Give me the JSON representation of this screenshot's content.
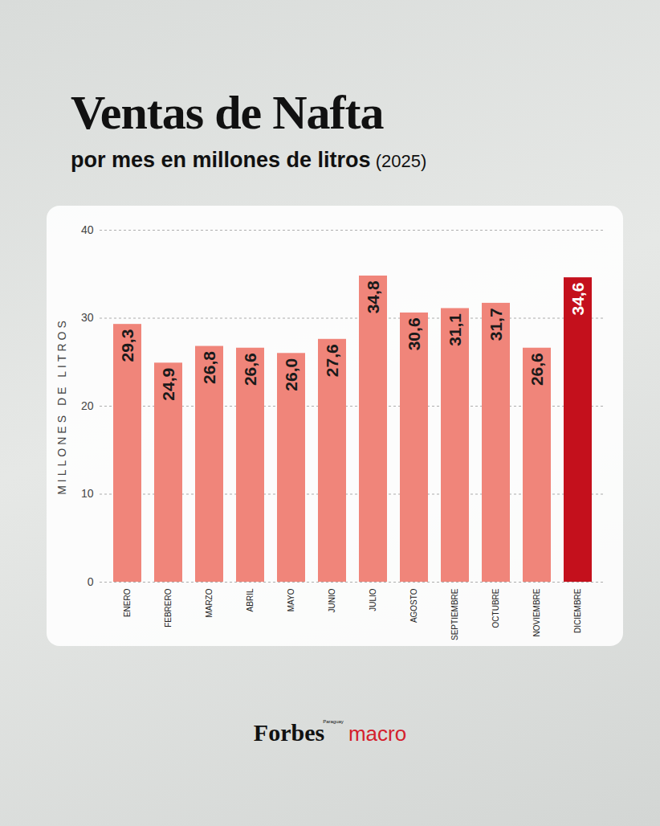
{
  "chart_data": {
    "type": "bar",
    "title": "Ventas de Nafta",
    "subtitle": [
      "por mes en millones de litros",
      "(2025)"
    ],
    "y_label": "MILLONES DE LITROS",
    "categories": [
      "ENERO",
      "FEBRERO",
      "MARZO",
      "ABRIL",
      "MAYO",
      "JUNIO",
      "JULIO",
      "AGOSTO",
      "SEPTIEMBRE",
      "OCTUBRE",
      "NOVIEMBRE",
      "DICIEMBRE"
    ],
    "values": [
      29.3,
      24.9,
      26.8,
      26.6,
      26.0,
      27.6,
      34.8,
      30.6,
      31.1,
      31.7,
      26.6,
      34.6
    ],
    "value_labels": [
      "29,3",
      "24,9",
      "26,8",
      "26,6",
      "26,0",
      "27,6",
      "34,8",
      "30,6",
      "31,1",
      "31,7",
      "26,6",
      "34,6"
    ],
    "colors": [
      "#f0857a",
      "#f0857a",
      "#f0857a",
      "#f0857a",
      "#f0857a",
      "#f0857a",
      "#f0857a",
      "#f0857a",
      "#f0857a",
      "#f0857a",
      "#f0857a",
      "#c4101c"
    ],
    "ylim": [
      0,
      40
    ],
    "yticks": [
      0,
      10,
      20,
      30,
      40
    ],
    "grid": true,
    "data_labels": true,
    "annotations": [
      "Forbes",
      "Paraguay",
      "macro"
    ]
  }
}
